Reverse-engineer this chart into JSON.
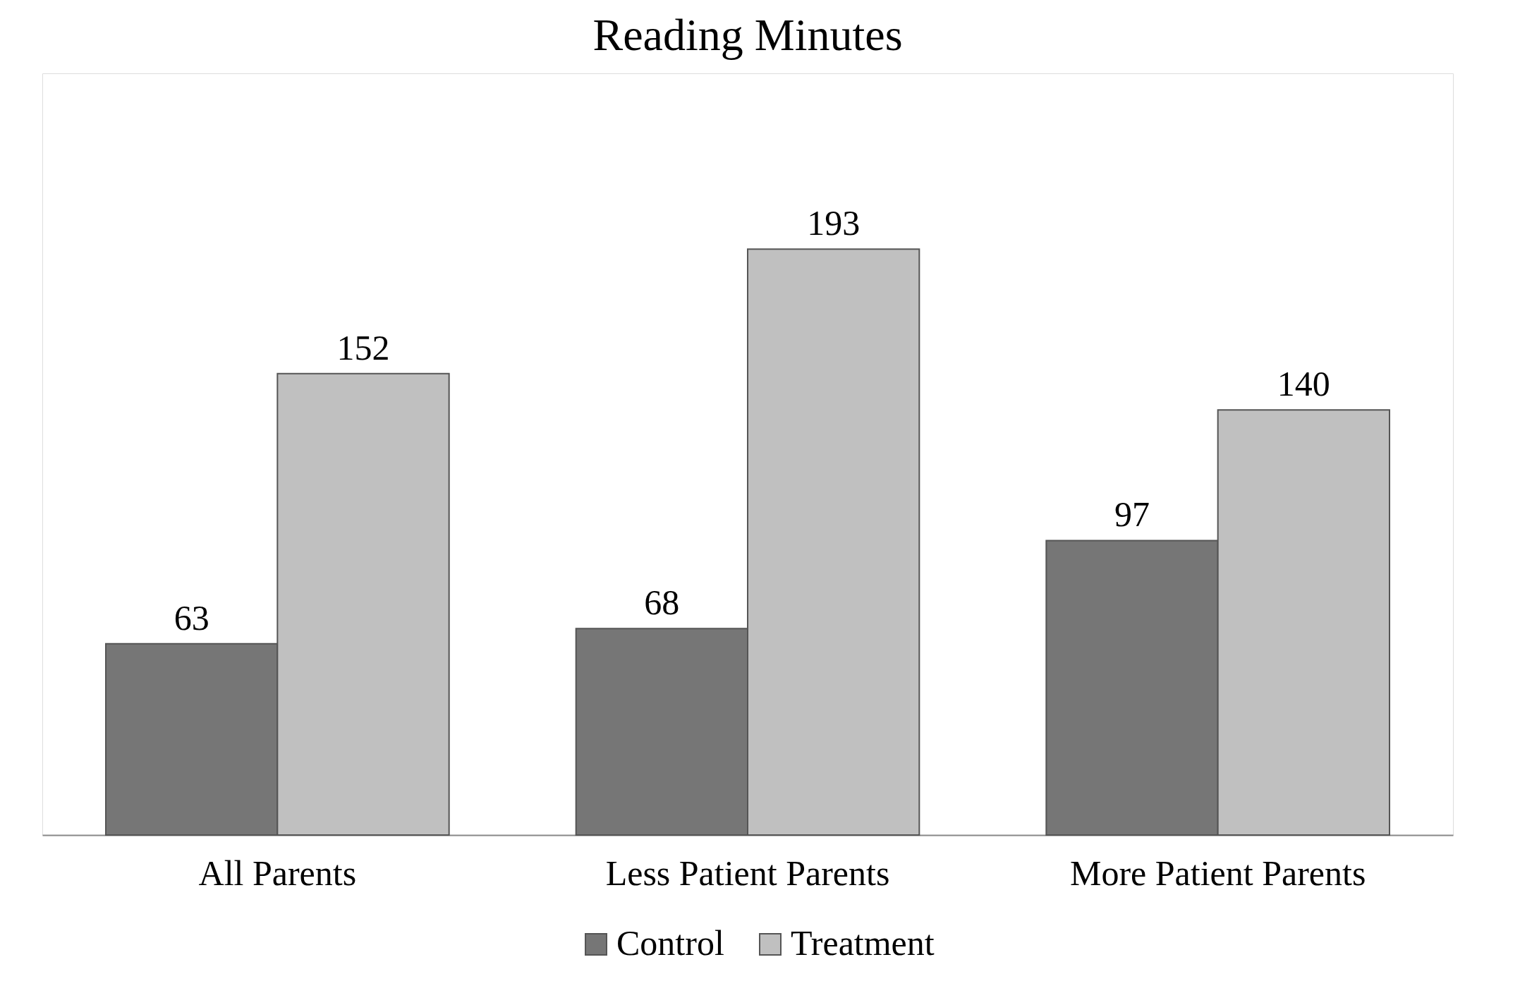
{
  "chart_data": {
    "type": "bar",
    "title": "Reading Minutes",
    "categories": [
      "All Parents",
      "Less Patient Parents",
      "More Patient Parents"
    ],
    "series": [
      {
        "name": "Control",
        "color": "#767676",
        "values": [
          63,
          68,
          97
        ]
      },
      {
        "name": "Treatment",
        "color": "#c0c0c0",
        "values": [
          152,
          193,
          140
        ]
      }
    ],
    "data_labels": true,
    "legend": "bottom"
  }
}
